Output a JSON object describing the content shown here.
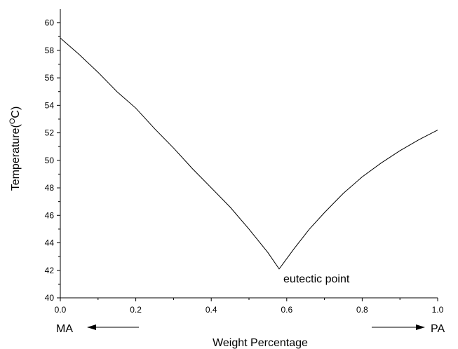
{
  "chart_data": {
    "type": "line",
    "title": "",
    "xlabel": "Weight Percentage",
    "ylabel": "Temperature(°C)",
    "ylabel_parts": [
      "Temperature(",
      "O",
      "C)"
    ],
    "xlim": [
      0.0,
      1.0
    ],
    "ylim": [
      40,
      61
    ],
    "x_ticks": [
      0.0,
      0.2,
      0.4,
      0.6,
      0.8,
      1.0
    ],
    "x_tick_labels": [
      "0.0",
      "0.2",
      "0.4",
      "0.6",
      "0.8",
      "1.0"
    ],
    "y_ticks": [
      40,
      42,
      44,
      46,
      48,
      50,
      52,
      54,
      56,
      58,
      60
    ],
    "y_tick_labels": [
      "40",
      "42",
      "44",
      "46",
      "48",
      "50",
      "52",
      "54",
      "56",
      "58",
      "60"
    ],
    "grid": false,
    "line_color": "#000000",
    "series": [
      {
        "x": [
          0.0,
          0.05,
          0.1,
          0.15,
          0.2,
          0.25,
          0.3,
          0.35,
          0.4,
          0.45,
          0.5,
          0.55,
          0.58,
          0.62,
          0.66,
          0.7,
          0.75,
          0.8,
          0.85,
          0.9,
          0.95,
          1.0
        ],
        "y": [
          58.9,
          57.7,
          56.4,
          55.0,
          53.8,
          52.3,
          50.9,
          49.4,
          48.0,
          46.6,
          45.0,
          43.3,
          42.1,
          43.6,
          45.0,
          46.2,
          47.6,
          48.8,
          49.8,
          50.7,
          51.5,
          52.2
        ]
      }
    ],
    "annotations": [
      {
        "text": "eutectic point",
        "x": 0.58,
        "y": 42.1
      }
    ],
    "bottom_labels": {
      "left": "MA",
      "right": "PA"
    }
  }
}
